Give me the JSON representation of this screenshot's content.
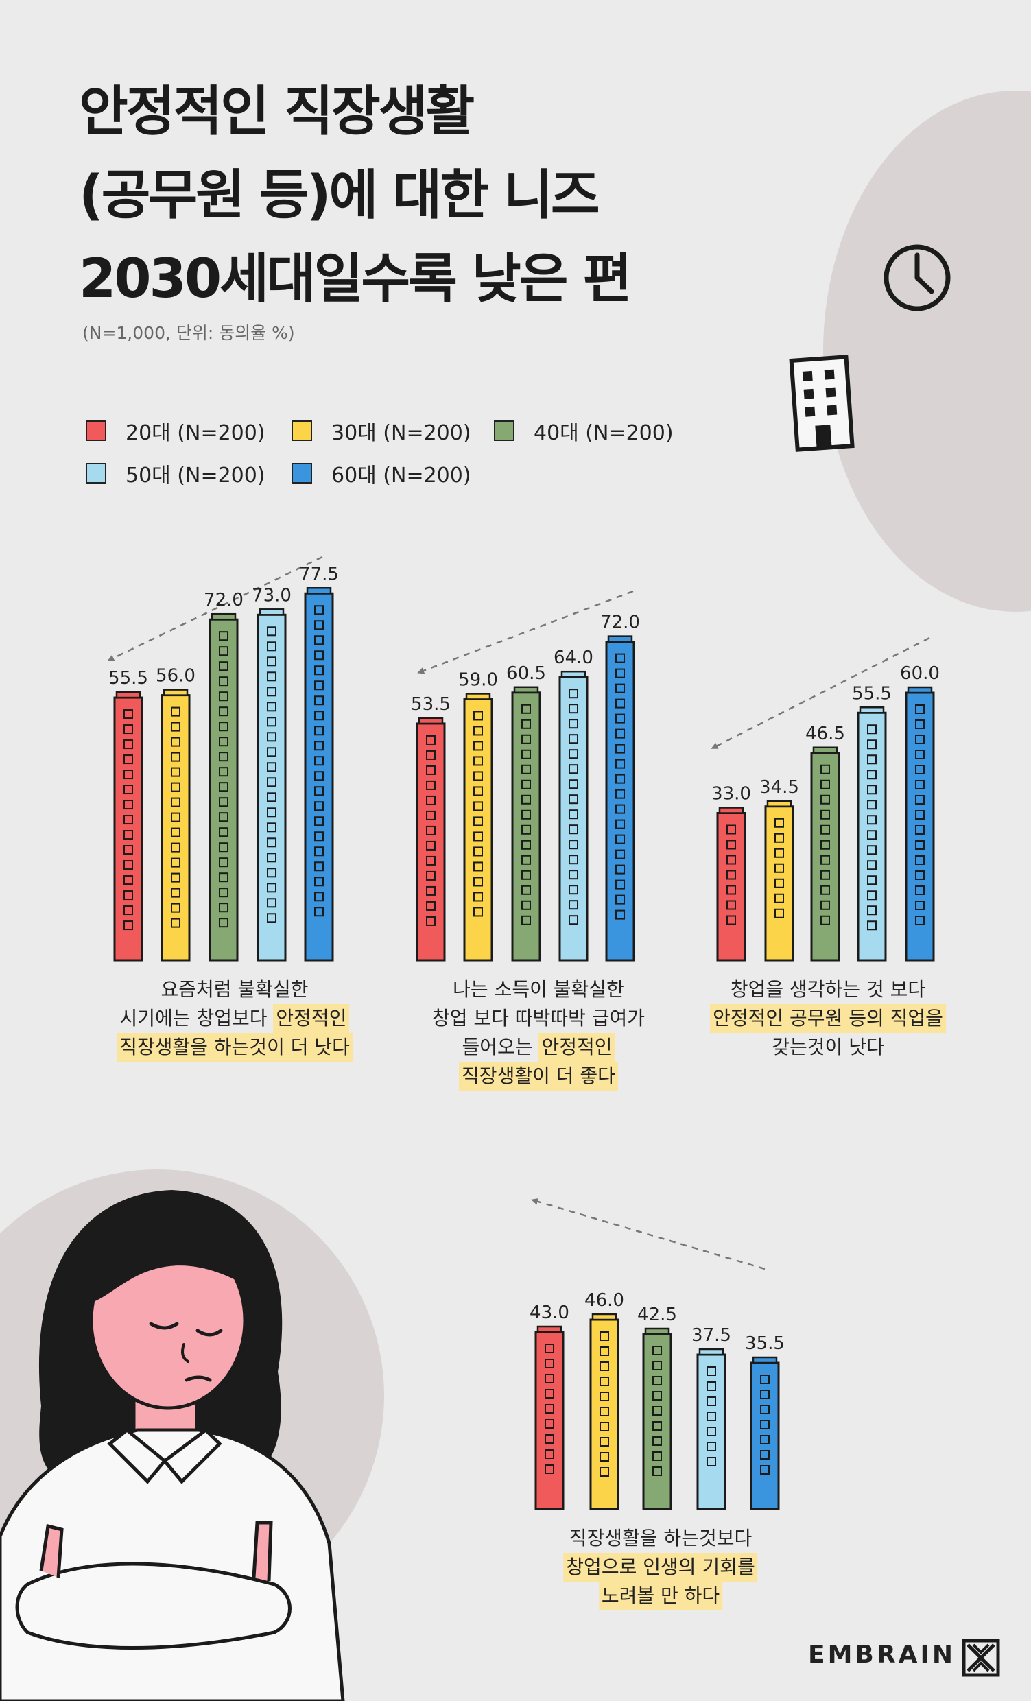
{
  "title": {
    "line1": "안정적인 직장생활",
    "line2": "(공무원 등)에 대한 니즈",
    "line3": "2030세대일수록 낮은 편"
  },
  "note": "(N=1,000, 단위: 동의율 %)",
  "legend": [
    "20대 (N=200)",
    "30대 (N=200)",
    "40대 (N=200)",
    "50대 (N=200)",
    "60대 (N=200)"
  ],
  "colors": {
    "series": [
      "#f05a5b",
      "#fbd44a",
      "#86a872",
      "#a6dbef",
      "#3b95de"
    ],
    "background": "#ebebeb",
    "decor_circle": "#d9d3d4",
    "highlight": "#fbe49b"
  },
  "icons": [
    "clock-icon",
    "building-icon",
    "woman-illustration",
    "trend-arrow-icon",
    "embrain-logo-icon"
  ],
  "chart_data": [
    {
      "type": "bar",
      "series": [
        {
          "name": "20대 (N=200)",
          "value": 55.5
        },
        {
          "name": "30대 (N=200)",
          "value": 56.0
        },
        {
          "name": "40대 (N=200)",
          "value": 72.0
        },
        {
          "name": "50대 (N=200)",
          "value": 73.0
        },
        {
          "name": "60대 (N=200)",
          "value": 77.5
        }
      ],
      "labels": [
        "55.5",
        "56.0",
        "72.0",
        "73.0",
        "77.5"
      ],
      "caption": {
        "part1": "요즘처럼 불확실한",
        "part2": "시기에는 창업보다",
        "hl1": "안정적인",
        "hl2": "직장생활을 하는것이 더 낫다"
      }
    },
    {
      "type": "bar",
      "series": [
        {
          "name": "20대 (N=200)",
          "value": 53.5
        },
        {
          "name": "30대 (N=200)",
          "value": 59.0
        },
        {
          "name": "40대 (N=200)",
          "value": 60.5
        },
        {
          "name": "50대 (N=200)",
          "value": 64.0
        },
        {
          "name": "60대 (N=200)",
          "value": 72.0
        }
      ],
      "labels": [
        "53.5",
        "59.0",
        "60.5",
        "64.0",
        "72.0"
      ],
      "caption": {
        "part1": "나는 소득이 불확실한",
        "part2": "창업 보다 따박따박 급여가",
        "part3": "들어오는",
        "hl1": "안정적인",
        "hl2": "직장생활이 더 좋다"
      }
    },
    {
      "type": "bar",
      "series": [
        {
          "name": "20대 (N=200)",
          "value": 33.0
        },
        {
          "name": "30대 (N=200)",
          "value": 34.5
        },
        {
          "name": "40대 (N=200)",
          "value": 46.5
        },
        {
          "name": "50대 (N=200)",
          "value": 55.5
        },
        {
          "name": "60대 (N=200)",
          "value": 60.0
        }
      ],
      "labels": [
        "33.0",
        "34.5",
        "46.5",
        "55.5",
        "60.0"
      ],
      "caption": {
        "part1": "창업을 생각하는 것 보다",
        "hl1": "안정적인 공무원 등의 직업을",
        "part2": "갖는것이 낫다"
      }
    },
    {
      "type": "bar",
      "series": [
        {
          "name": "20대 (N=200)",
          "value": 43.0
        },
        {
          "name": "30대 (N=200)",
          "value": 46.0
        },
        {
          "name": "40대 (N=200)",
          "value": 42.5
        },
        {
          "name": "50대 (N=200)",
          "value": 37.5
        },
        {
          "name": "60대 (N=200)",
          "value": 35.5
        }
      ],
      "labels": [
        "43.0",
        "46.0",
        "42.5",
        "37.5",
        "35.5"
      ],
      "caption": {
        "part1": "직장생활을 하는것보다",
        "hl1": "창업으로 인생의 기회를",
        "hl2": "노려볼 만 하다"
      }
    }
  ],
  "brand": "EMBRAIN"
}
